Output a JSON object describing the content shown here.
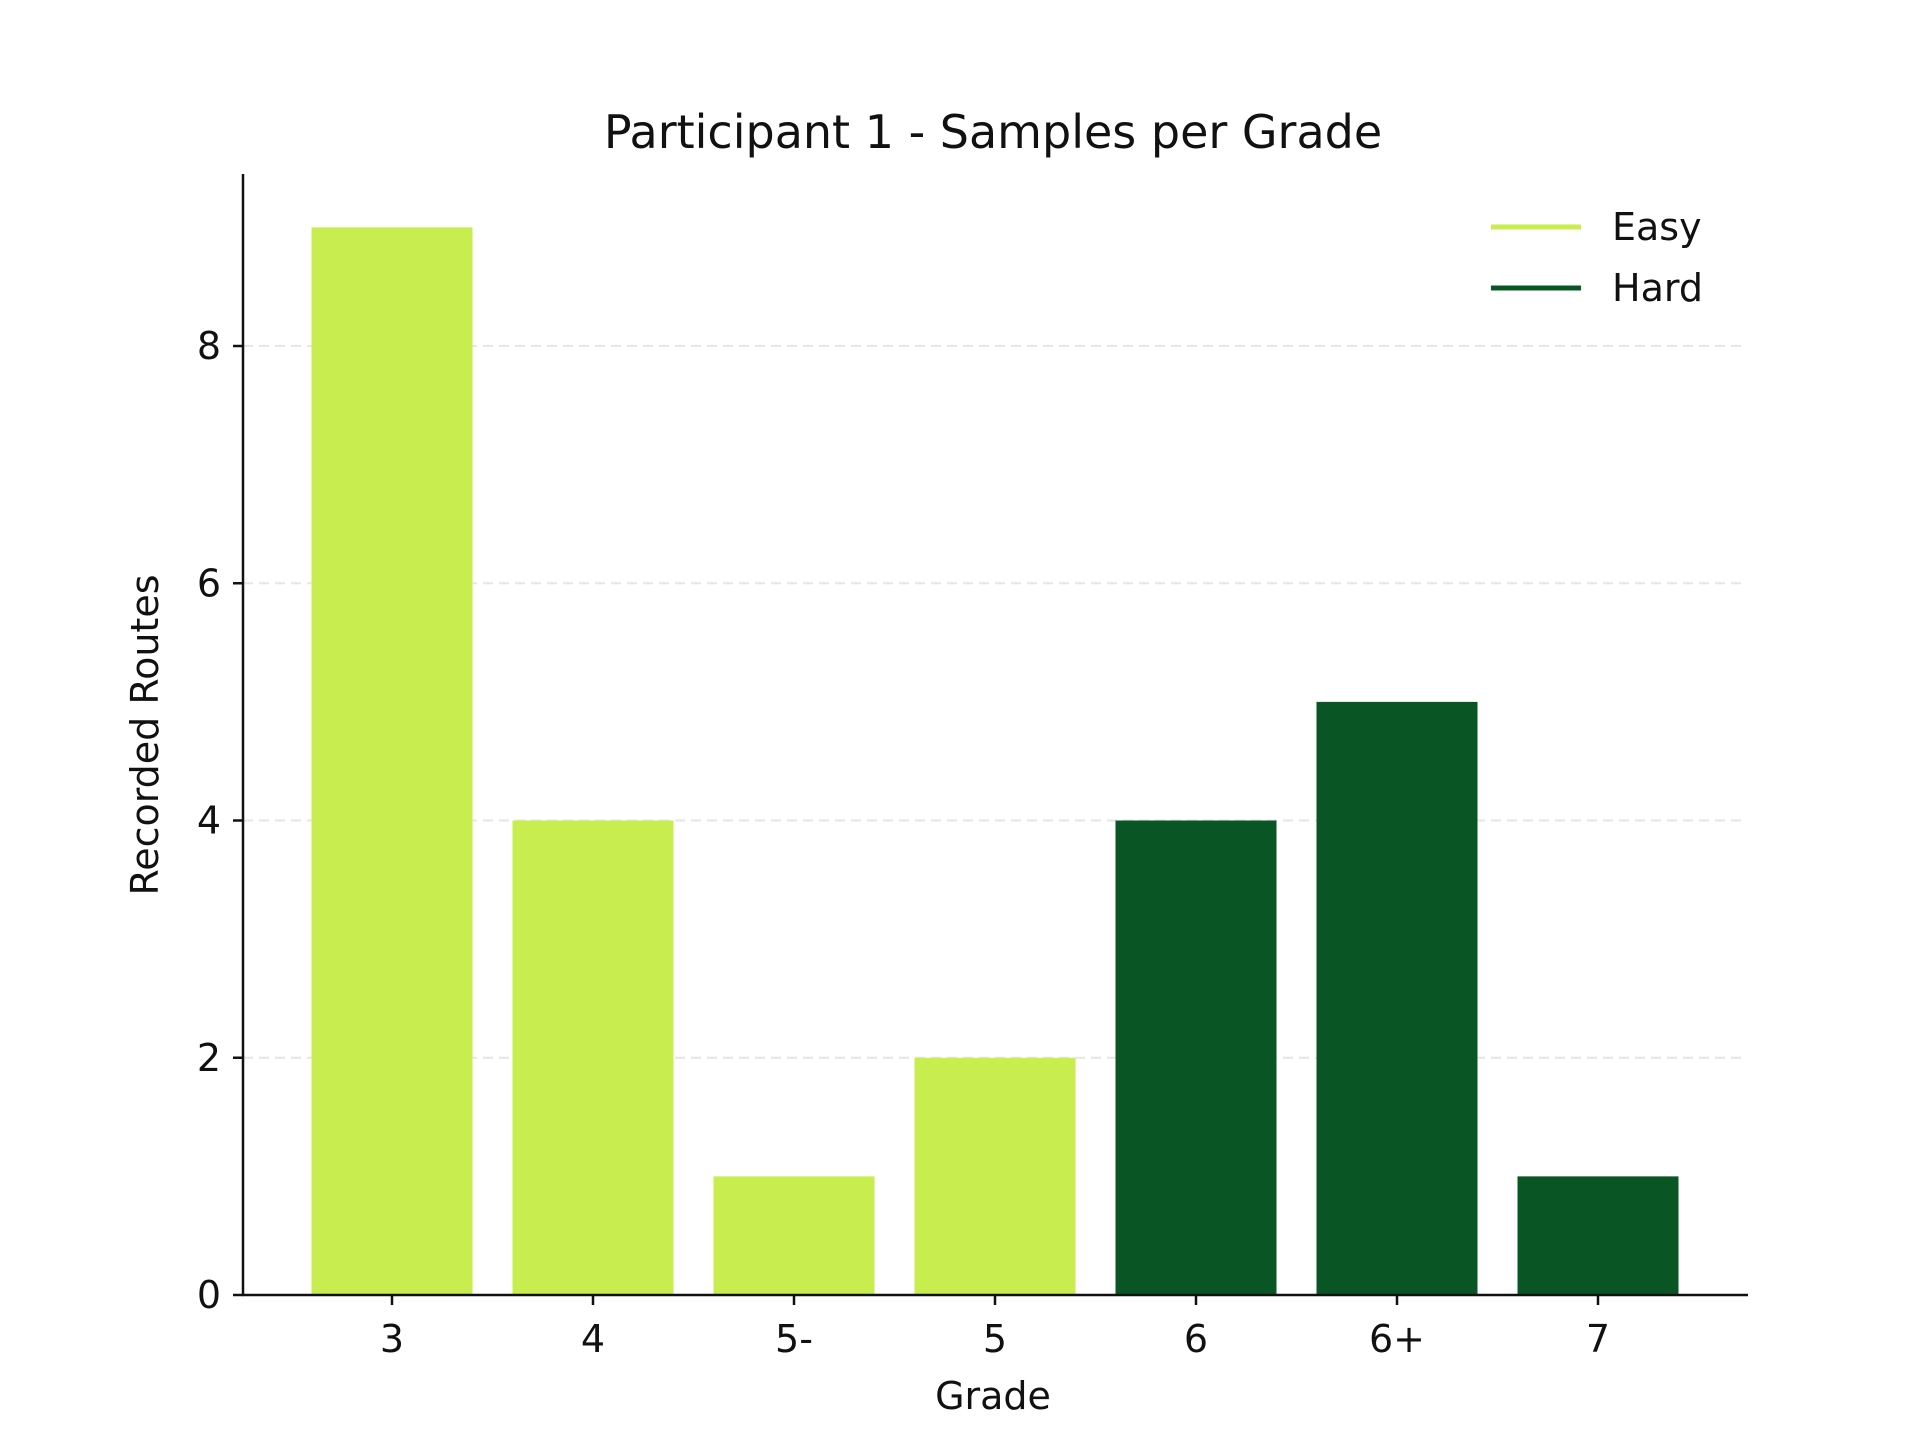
{
  "chart_data": {
    "type": "bar",
    "title": "Participant 1 - Samples per Grade",
    "xlabel": "Grade",
    "ylabel": "Recorded Routes",
    "categories": [
      "3",
      "4",
      "5-",
      "5",
      "6",
      "6+",
      "7"
    ],
    "values": [
      9,
      4,
      1,
      2,
      4,
      5,
      1
    ],
    "groups": [
      "Easy",
      "Easy",
      "Easy",
      "Easy",
      "Hard",
      "Hard",
      "Hard"
    ],
    "ylim": [
      0,
      9.45
    ],
    "yticks": [
      0,
      2,
      4,
      6,
      8
    ],
    "grid": "horizontal-dashed",
    "legend_position": "top-right",
    "legend": [
      {
        "name": "Easy",
        "color": "#c7ee4e"
      },
      {
        "name": "Hard",
        "color": "#0a5524"
      }
    ],
    "colors": {
      "Easy": "#c7ee4e",
      "Hard": "#0a5524"
    }
  }
}
